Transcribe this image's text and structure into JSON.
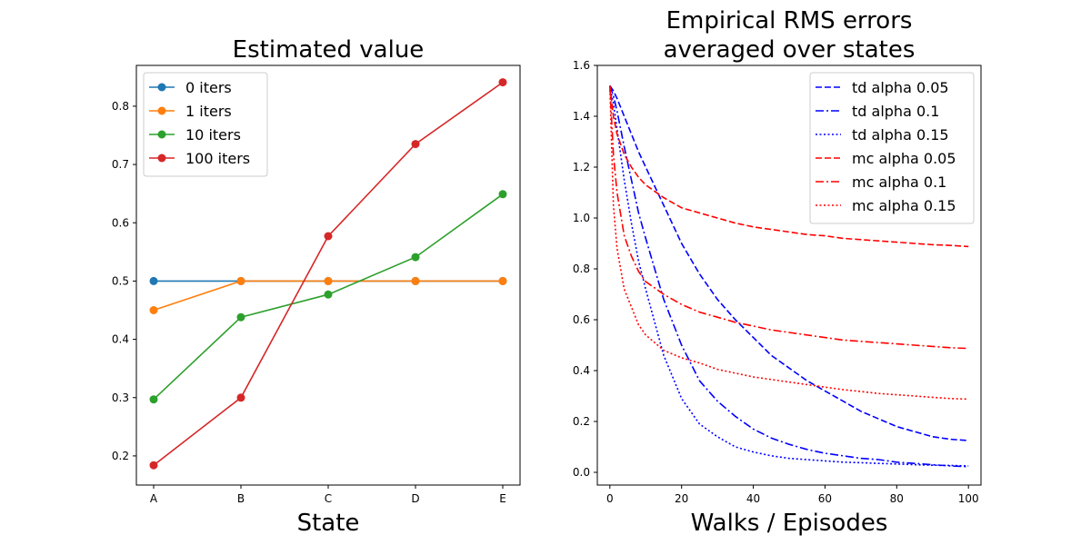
{
  "chart_data": [
    {
      "type": "line",
      "title": "Estimated value",
      "xlabel": "State",
      "ylabel": "",
      "categories": [
        "A",
        "B",
        "C",
        "D",
        "E"
      ],
      "ylim": [
        0.15,
        0.87
      ],
      "yticks": [
        "0.2",
        "0.3",
        "0.4",
        "0.5",
        "0.6",
        "0.7",
        "0.8"
      ],
      "legend_position": "top-left",
      "markers": true,
      "series": [
        {
          "name": "0 iters",
          "color": "#1f77b4",
          "values": [
            0.5,
            0.5,
            0.5,
            0.5,
            0.5
          ]
        },
        {
          "name": "1 iters",
          "color": "#ff7f0e",
          "values": [
            0.45,
            0.5,
            0.5,
            0.5,
            0.5
          ]
        },
        {
          "name": "10 iters",
          "color": "#2ca02c",
          "values": [
            0.297,
            0.438,
            0.477,
            0.541,
            0.649
          ]
        },
        {
          "name": "100 iters",
          "color": "#d62728",
          "values": [
            0.184,
            0.3,
            0.577,
            0.735,
            0.841
          ]
        }
      ]
    },
    {
      "type": "line",
      "title": "Empirical RMS errors\naveraged over states",
      "title_lines": [
        "Empirical RMS errors",
        "averaged over states"
      ],
      "xlabel": "Walks / Episodes",
      "ylabel": "",
      "xlim": [
        -3.5,
        103.5
      ],
      "ylim": [
        -0.05,
        1.6
      ],
      "xticks": [
        "0",
        "20",
        "40",
        "60",
        "80",
        "100"
      ],
      "yticks": [
        "0.0",
        "0.2",
        "0.4",
        "0.6",
        "0.8",
        "1.0",
        "1.2",
        "1.4",
        "1.6"
      ],
      "legend_position": "top-right",
      "markers": false,
      "x": [
        0,
        1,
        2,
        4,
        6,
        8,
        10,
        15,
        20,
        25,
        30,
        35,
        40,
        45,
        50,
        55,
        60,
        65,
        70,
        75,
        80,
        85,
        90,
        95,
        100
      ],
      "series": [
        {
          "name": "td alpha 0.05",
          "color": "#0000ff",
          "dash": "dashed",
          "values": [
            1.52,
            1.5,
            1.47,
            1.4,
            1.33,
            1.26,
            1.2,
            1.05,
            0.9,
            0.78,
            0.68,
            0.6,
            0.53,
            0.46,
            0.41,
            0.36,
            0.32,
            0.28,
            0.24,
            0.21,
            0.18,
            0.16,
            0.14,
            0.13,
            0.125
          ]
        },
        {
          "name": "td alpha 0.1",
          "color": "#0000ff",
          "dash": "dashdot",
          "values": [
            1.52,
            1.48,
            1.42,
            1.28,
            1.15,
            1.02,
            0.92,
            0.68,
            0.5,
            0.36,
            0.28,
            0.22,
            0.17,
            0.135,
            0.11,
            0.09,
            0.075,
            0.065,
            0.055,
            0.05,
            0.04,
            0.035,
            0.03,
            0.025,
            0.022
          ]
        },
        {
          "name": "td alpha 0.15",
          "color": "#0000ff",
          "dash": "dotted",
          "values": [
            1.52,
            1.45,
            1.35,
            1.15,
            0.98,
            0.83,
            0.72,
            0.46,
            0.29,
            0.19,
            0.14,
            0.1,
            0.08,
            0.065,
            0.055,
            0.05,
            0.045,
            0.04,
            0.038,
            0.035,
            0.033,
            0.03,
            0.028,
            0.027,
            0.025
          ]
        },
        {
          "name": "mc alpha 0.05",
          "color": "#ff0000",
          "dash": "dashed",
          "values": [
            1.52,
            1.4,
            1.33,
            1.25,
            1.2,
            1.16,
            1.13,
            1.08,
            1.04,
            1.02,
            1.0,
            0.98,
            0.965,
            0.955,
            0.945,
            0.935,
            0.93,
            0.92,
            0.915,
            0.91,
            0.905,
            0.9,
            0.895,
            0.892,
            0.888
          ]
        },
        {
          "name": "mc alpha 0.1",
          "color": "#ff0000",
          "dash": "dashdot",
          "values": [
            1.52,
            1.25,
            1.1,
            0.93,
            0.85,
            0.79,
            0.75,
            0.7,
            0.66,
            0.63,
            0.61,
            0.59,
            0.575,
            0.56,
            0.55,
            0.54,
            0.53,
            0.52,
            0.515,
            0.51,
            0.505,
            0.5,
            0.495,
            0.49,
            0.487
          ]
        },
        {
          "name": "mc alpha 0.15",
          "color": "#ff0000",
          "dash": "dotted",
          "values": [
            1.52,
            1.05,
            0.88,
            0.72,
            0.65,
            0.58,
            0.54,
            0.48,
            0.45,
            0.43,
            0.405,
            0.39,
            0.375,
            0.365,
            0.355,
            0.345,
            0.335,
            0.325,
            0.318,
            0.31,
            0.305,
            0.3,
            0.295,
            0.29,
            0.288
          ]
        }
      ]
    }
  ]
}
